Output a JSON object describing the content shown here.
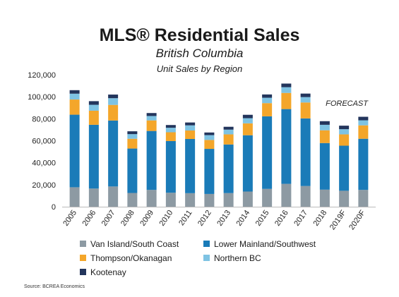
{
  "chart_data": {
    "type": "bar",
    "stacked": true,
    "title": "MLS® Residential Sales",
    "subtitle": "British Columbia",
    "subsubtitle": "Unit Sales by Region",
    "annotation": "FORECAST",
    "source": "Source: BCREA Economics",
    "categories": [
      "2005",
      "2006",
      "2007",
      "2008",
      "2009",
      "2010",
      "2011",
      "2012",
      "2013",
      "2014",
      "2015",
      "2016",
      "2017",
      "2018",
      "2019F",
      "2020F"
    ],
    "ylim": [
      0,
      120000
    ],
    "yticks": [
      0,
      20000,
      40000,
      60000,
      80000,
      100000,
      120000
    ],
    "ytick_labels": [
      "0",
      "20,000",
      "40,000",
      "60,000",
      "80,000",
      "100,000",
      "120,000"
    ],
    "legend_position": "bottom",
    "grid": false,
    "series": [
      {
        "name": "Van Island/South Coast",
        "color": "#8d9aa3",
        "values": [
          17700,
          16500,
          18400,
          12500,
          15300,
          12700,
          12300,
          11600,
          12400,
          13800,
          16200,
          20800,
          18800,
          15500,
          14500,
          15300
        ]
      },
      {
        "name": "Lower Mainland/Southwest",
        "color": "#1a7bb8",
        "values": [
          66000,
          58000,
          60000,
          40400,
          53600,
          47000,
          49300,
          41000,
          44200,
          51200,
          66000,
          68000,
          61500,
          42400,
          41000,
          46500
        ]
      },
      {
        "name": "Thompson/Okanagan",
        "color": "#f4a62a",
        "values": [
          13800,
          12800,
          14200,
          8900,
          9600,
          8000,
          7700,
          8100,
          9200,
          10800,
          12000,
          14700,
          14500,
          11600,
          10300,
          12200
        ]
      },
      {
        "name": "Northern BC",
        "color": "#7ec3e3",
        "values": [
          5300,
          5400,
          6100,
          4200,
          4000,
          4100,
          4700,
          4400,
          4300,
          4700,
          4900,
          5200,
          4900,
          5000,
          4700,
          4600
        ]
      },
      {
        "name": "Kootenay",
        "color": "#23355c",
        "values": [
          3200,
          3300,
          3300,
          2600,
          2700,
          2500,
          2600,
          2400,
          2600,
          3100,
          3000,
          3300,
          3200,
          3300,
          3200,
          3200
        ]
      }
    ]
  }
}
